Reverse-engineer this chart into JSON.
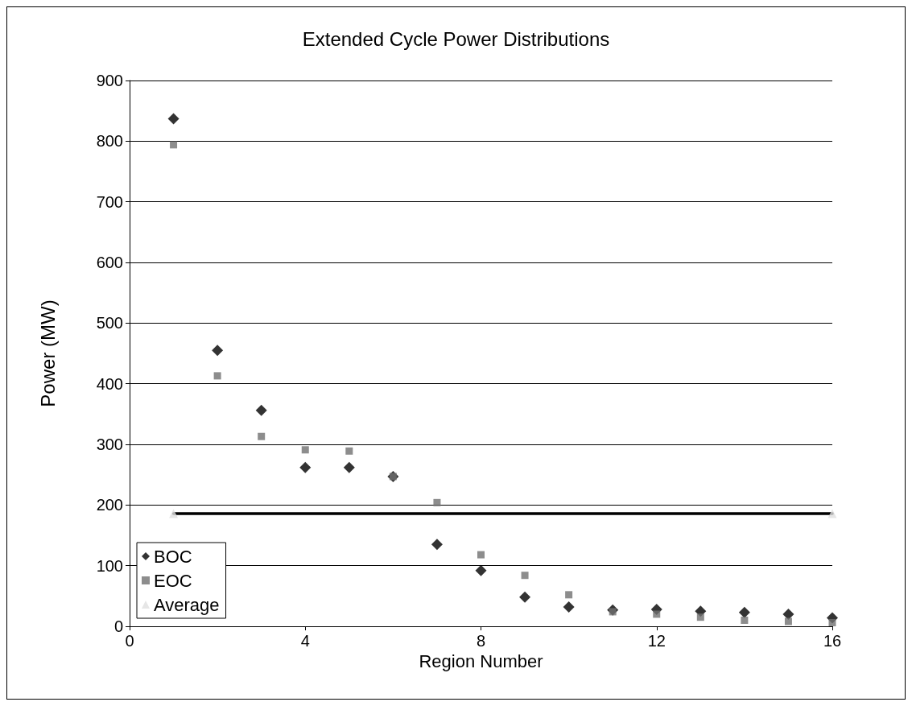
{
  "chart_data": {
    "type": "scatter",
    "title": "Extended Cycle Power Distributions",
    "xlabel": "Region Number",
    "ylabel": "Power (MW)",
    "xlim": [
      0,
      16
    ],
    "xticks": [
      0,
      4,
      8,
      12,
      16
    ],
    "ylim": [
      0,
      900
    ],
    "yticks": [
      0,
      100,
      200,
      300,
      400,
      500,
      600,
      700,
      800,
      900
    ],
    "grid": "y",
    "legend": "bottom left",
    "series": [
      {
        "name": "BOC",
        "color": "#000000",
        "marker": "diamond",
        "x": [
          1,
          2,
          3,
          4,
          5,
          6,
          7,
          8,
          9,
          10,
          11,
          12,
          13,
          14,
          15,
          16
        ],
        "values": [
          837,
          455,
          356,
          262,
          262,
          247,
          135,
          92,
          48,
          32,
          27,
          28,
          25,
          23,
          20,
          14
        ]
      },
      {
        "name": "EOC",
        "color": "#707070",
        "marker": "square",
        "x": [
          1,
          2,
          3,
          4,
          5,
          6,
          7,
          8,
          9,
          10,
          11,
          12,
          13,
          14,
          15,
          16
        ],
        "values": [
          794,
          413,
          313,
          291,
          289,
          247,
          204,
          118,
          84,
          52,
          24,
          20,
          15,
          10,
          8,
          6
        ]
      },
      {
        "name": "Average",
        "color": "#e0e0e0",
        "marker": "triangle",
        "x": [
          1,
          16
        ],
        "values": [
          186,
          186
        ]
      },
      {
        "type": "line",
        "color": "#000000",
        "marker": "none",
        "line_style": "solid",
        "x": [
          1,
          16
        ],
        "values": [
          186,
          186
        ]
      }
    ]
  }
}
